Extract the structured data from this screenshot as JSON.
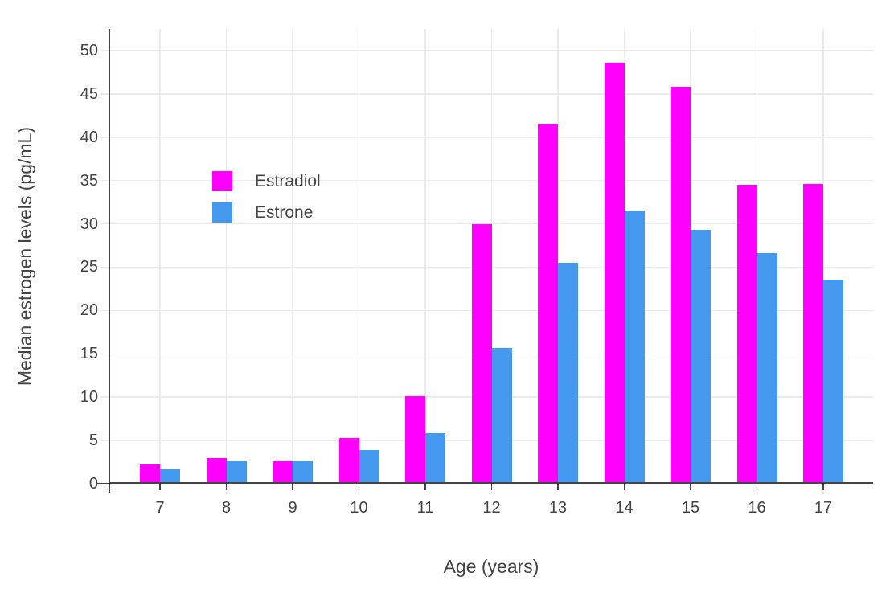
{
  "chart_data": {
    "type": "bar",
    "title": "",
    "xlabel": "Age (years)",
    "ylabel": "Median estrogen levels (pg/mL)",
    "categories": [
      "7",
      "8",
      "9",
      "10",
      "11",
      "12",
      "13",
      "14",
      "15",
      "16",
      "17"
    ],
    "series": [
      {
        "name": "Estradiol",
        "color": "#FF00FF",
        "values": [
          2.2,
          3.0,
          2.6,
          5.3,
          10.1,
          30.0,
          41.6,
          48.6,
          45.8,
          34.5,
          34.6
        ]
      },
      {
        "name": "Estrone",
        "color": "#4499EE",
        "values": [
          1.7,
          2.6,
          2.6,
          3.9,
          5.8,
          15.7,
          25.5,
          31.5,
          29.3,
          26.6,
          23.6
        ]
      }
    ],
    "ylim": [
      0,
      52.5
    ],
    "yticks": [
      0,
      5,
      10,
      15,
      20,
      25,
      30,
      35,
      40,
      45,
      50
    ],
    "grid": true,
    "legend_position": "inside-top-left",
    "colors": {
      "background": "#FFFFFF",
      "text": "#444444",
      "grid": "#EBEBEB",
      "axis": "#444444"
    }
  }
}
